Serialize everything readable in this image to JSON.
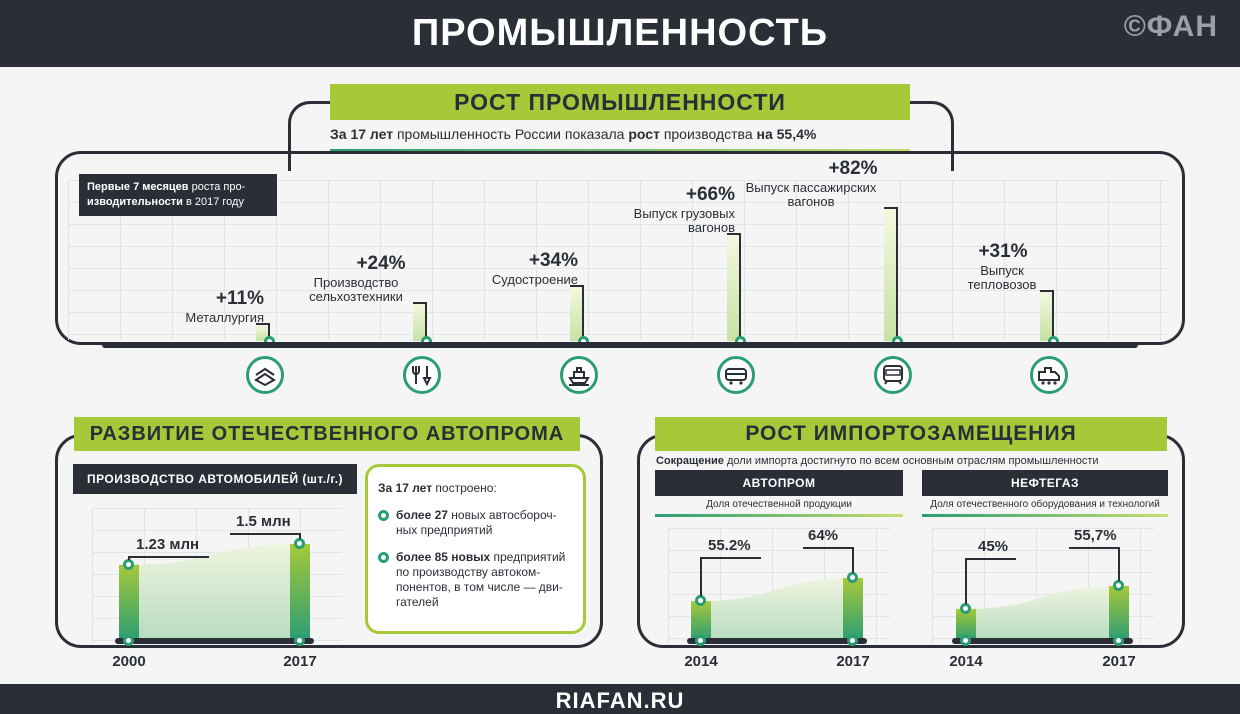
{
  "header": {
    "title": "ПРОМЫШЛЕННОСТЬ",
    "logo": "©ФАН"
  },
  "footer": {
    "site": "RIAFAN.RU"
  },
  "growth": {
    "heading": "РОСТ ПРОМЫШЛЕННОСТИ",
    "sub_a": "За 17 лет",
    "sub_b": "промышленность России показала",
    "sub_c": "рост",
    "sub_d": "производства",
    "sub_e": "на 55,4%",
    "note_a": "Первые 7 месяцев",
    "note_b": "роста про-",
    "note_c": "изводительности",
    "note_d": "в 2017 году"
  },
  "autoprom": {
    "heading": "РАЗВИТИЕ ОТЕЧЕСТВЕННОГО АВТОПРОМА",
    "subhead": "ПРОИЗВОДСТВО АВТОМОБИЛЕЙ (шт./г.)",
    "info_title_b": "За 17 лет",
    "info_title": "построено:",
    "item1_b": "более 27",
    "item1": "новых автосбороч-ных предприятий",
    "item2_b": "более 85 новых",
    "item2": "предприятий по производству автоком-понентов, в том числе — дви-гателей"
  },
  "import": {
    "heading": "РОСТ ИМПОРТОЗАМЕЩЕНИЯ",
    "sub_b": "Сокращение",
    "sub": "доли импорта достигнуто по всем основным отраслям промышленности",
    "auto_label": "АВТОПРОМ",
    "auto_caption": "Доля отечественной продукции",
    "oil_label": "НЕФТЕГАЗ",
    "oil_caption": "Доля отечественного оборудования и технологий"
  },
  "chart_data": [
    {
      "type": "bar",
      "title": "РОСТ ПРОМЫШЛЕННОСТИ",
      "categories": [
        "Металлургия",
        "Производство сельхозтехники",
        "Судостроение",
        "Выпуск грузовых вагонов",
        "Выпуск пассажирских вагонов",
        "Выпуск тепловозов"
      ],
      "values": [
        11,
        24,
        34,
        66,
        82,
        31
      ],
      "labels": [
        "+11%",
        "+24%",
        "+34%",
        "+66%",
        "+82%",
        "+31%"
      ],
      "icons": [
        "steel-beam-icon",
        "farm-tools-icon",
        "ship-icon",
        "freight-car-icon",
        "passenger-car-icon",
        "locomotive-icon"
      ],
      "accent": "#a6c93a",
      "dark": "#2a2e36"
    },
    {
      "type": "area",
      "title": "ПРОИЗВОДСТВО АВТОМОБИЛЕЙ (шт./г.)",
      "x": [
        "2000",
        "2017"
      ],
      "values": [
        1.23,
        1.5
      ],
      "labels": [
        "1.23 млн",
        "1.5 млн"
      ]
    },
    {
      "type": "area",
      "title": "АВТОПРОМ",
      "x": [
        "2014",
        "2017"
      ],
      "values": [
        55.2,
        64
      ],
      "labels": [
        "55.2%",
        "64%"
      ]
    },
    {
      "type": "area",
      "title": "НЕФТЕГАЗ",
      "x": [
        "2014",
        "2017"
      ],
      "values": [
        45,
        55.7
      ],
      "labels": [
        "45%",
        "55,7%"
      ]
    }
  ]
}
